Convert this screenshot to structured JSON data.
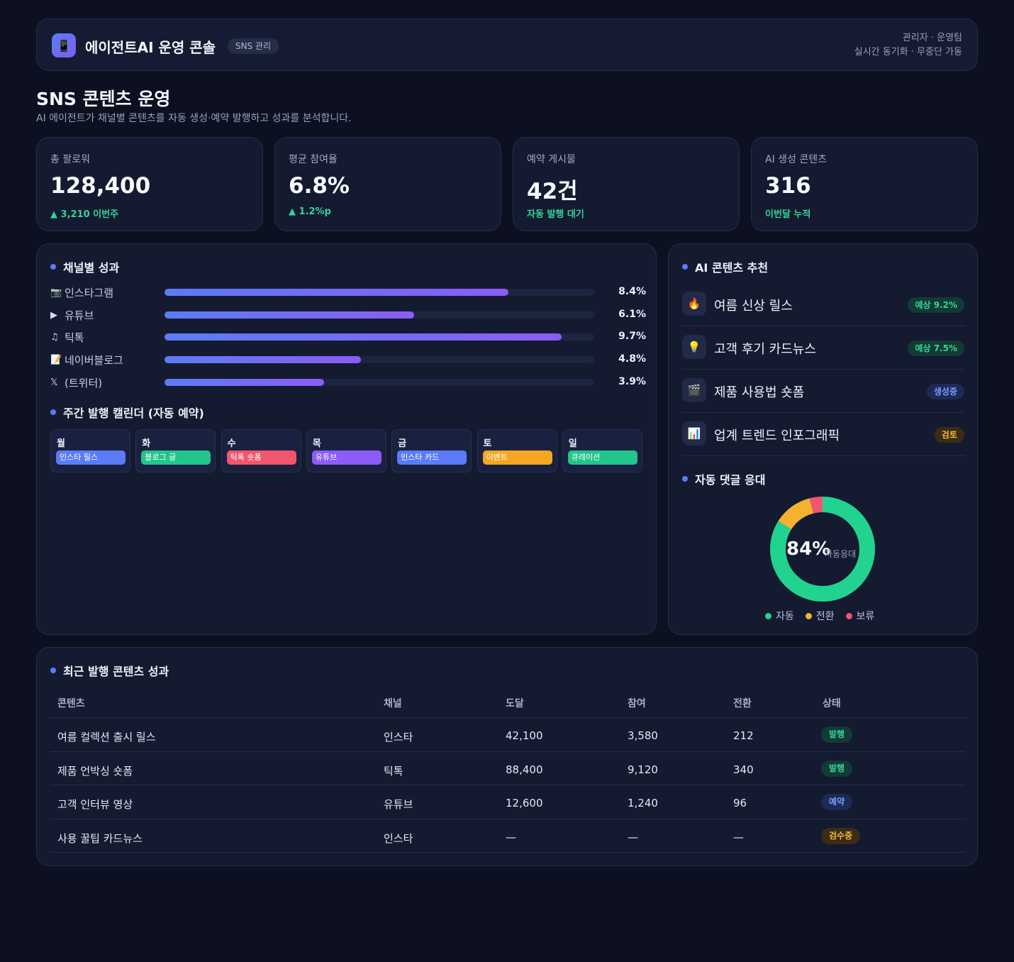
{
  "header": {
    "app_title": "에이전트AI 운영 콘솔",
    "badge": "SNS 관리",
    "logo_icon": "phone-icon",
    "meta_line1": "관리자 · 운영팀",
    "meta_line2": "실시간 동기화 · 무중단 가동"
  },
  "page": {
    "title": "SNS 콘텐츠 운영",
    "subtitle": "AI 에이전트가 채널별 콘텐츠를 자동 생성·예약 발행하고 성과를 분석합니다."
  },
  "kpis": [
    {
      "label": "총 팔로워",
      "value": "128,400",
      "delta": "▲ 3,210 이번주"
    },
    {
      "label": "평균 참여율",
      "value": "6.8%",
      "delta": "▲ 1.2%p"
    },
    {
      "label": "예약 게시물",
      "value": "42건",
      "delta": "자동 발행 대기"
    },
    {
      "label": "AI 생성 콘텐츠",
      "value": "316",
      "delta": "이번달 누적"
    }
  ],
  "channels": {
    "title": "채널별 성과",
    "max_rate": 10.5,
    "items": [
      {
        "icon": "camera-icon",
        "glyph": "📷",
        "name": "인스타그램",
        "rate": 8.4,
        "label": "8.4%"
      },
      {
        "icon": "play-icon",
        "glyph": "▶",
        "name": "유튜브",
        "rate": 6.1,
        "label": "6.1%"
      },
      {
        "icon": "music-note-icon",
        "glyph": "♫",
        "name": "틱톡",
        "rate": 9.7,
        "label": "9.7%"
      },
      {
        "icon": "memo-icon",
        "glyph": "📝",
        "name": "네이버블로그",
        "rate": 4.8,
        "label": "4.8%"
      },
      {
        "icon": "x-logo-icon",
        "glyph": "𝕏",
        "name": "(트위터)",
        "rate": 3.9,
        "label": "3.9%"
      }
    ]
  },
  "calendar": {
    "title": "주간 발행 캘린더 (자동 예약)",
    "days": [
      {
        "day": "월",
        "item": "인스타 릴스",
        "color": "#5b7cf6"
      },
      {
        "day": "화",
        "item": "블로그 글",
        "color": "#22c58b"
      },
      {
        "day": "수",
        "item": "틱톡 숏폼",
        "color": "#f0566d"
      },
      {
        "day": "목",
        "item": "유튜브",
        "color": "#8b5cf6"
      },
      {
        "day": "금",
        "item": "인스타 카드",
        "color": "#5b7cf6"
      },
      {
        "day": "토",
        "item": "이벤트",
        "color": "#f5a623"
      },
      {
        "day": "일",
        "item": "큐레이션",
        "color": "#22c58b"
      }
    ]
  },
  "recommendations": {
    "title": "AI 콘텐츠 추천",
    "items": [
      {
        "icon": "fire-icon",
        "glyph": "🔥",
        "title": "여름 신상 릴스",
        "badge": "예상 9.2%",
        "tone": "green"
      },
      {
        "icon": "lightbulb-icon",
        "glyph": "💡",
        "title": "고객 후기 카드뉴스",
        "badge": "예상 7.5%",
        "tone": "green"
      },
      {
        "icon": "clapper-icon",
        "glyph": "🎬",
        "title": "제품 사용법 숏폼",
        "badge": "생성중",
        "tone": "blue"
      },
      {
        "icon": "bar-chart-icon",
        "glyph": "📊",
        "title": "업계 트렌드 인포그래픽",
        "badge": "검토",
        "tone": "orange"
      }
    ]
  },
  "auto_reply": {
    "title": "자동 댓글 응대",
    "value_label": "84%",
    "caption": "자동응대",
    "segments": [
      {
        "name": "자동",
        "value": 84,
        "color": "#22d38f"
      },
      {
        "name": "전환",
        "value": 12,
        "color": "#f5b22f"
      },
      {
        "name": "보류",
        "value": 4,
        "color": "#f0566d"
      }
    ]
  },
  "table": {
    "title": "최근 발행 콘텐츠 성과",
    "headers": [
      "콘텐츠",
      "채널",
      "도달",
      "참여",
      "전환",
      "상태"
    ],
    "rows": [
      {
        "content": "여름 컬렉션 출시 릴스",
        "channel": "인스타",
        "reach": "42,100",
        "engage": "3,580",
        "convert": "212",
        "status": "발행",
        "tone": "green"
      },
      {
        "content": "제품 언박싱 숏폼",
        "channel": "틱톡",
        "reach": "88,400",
        "engage": "9,120",
        "convert": "340",
        "status": "발행",
        "tone": "green"
      },
      {
        "content": "고객 인터뷰 영상",
        "channel": "유튜브",
        "reach": "12,600",
        "engage": "1,240",
        "convert": "96",
        "status": "예약",
        "tone": "blue"
      },
      {
        "content": "사용 꿀팁 카드뉴스",
        "channel": "인스타",
        "reach": "—",
        "engage": "—",
        "convert": "—",
        "status": "검수중",
        "tone": "orange"
      }
    ]
  }
}
